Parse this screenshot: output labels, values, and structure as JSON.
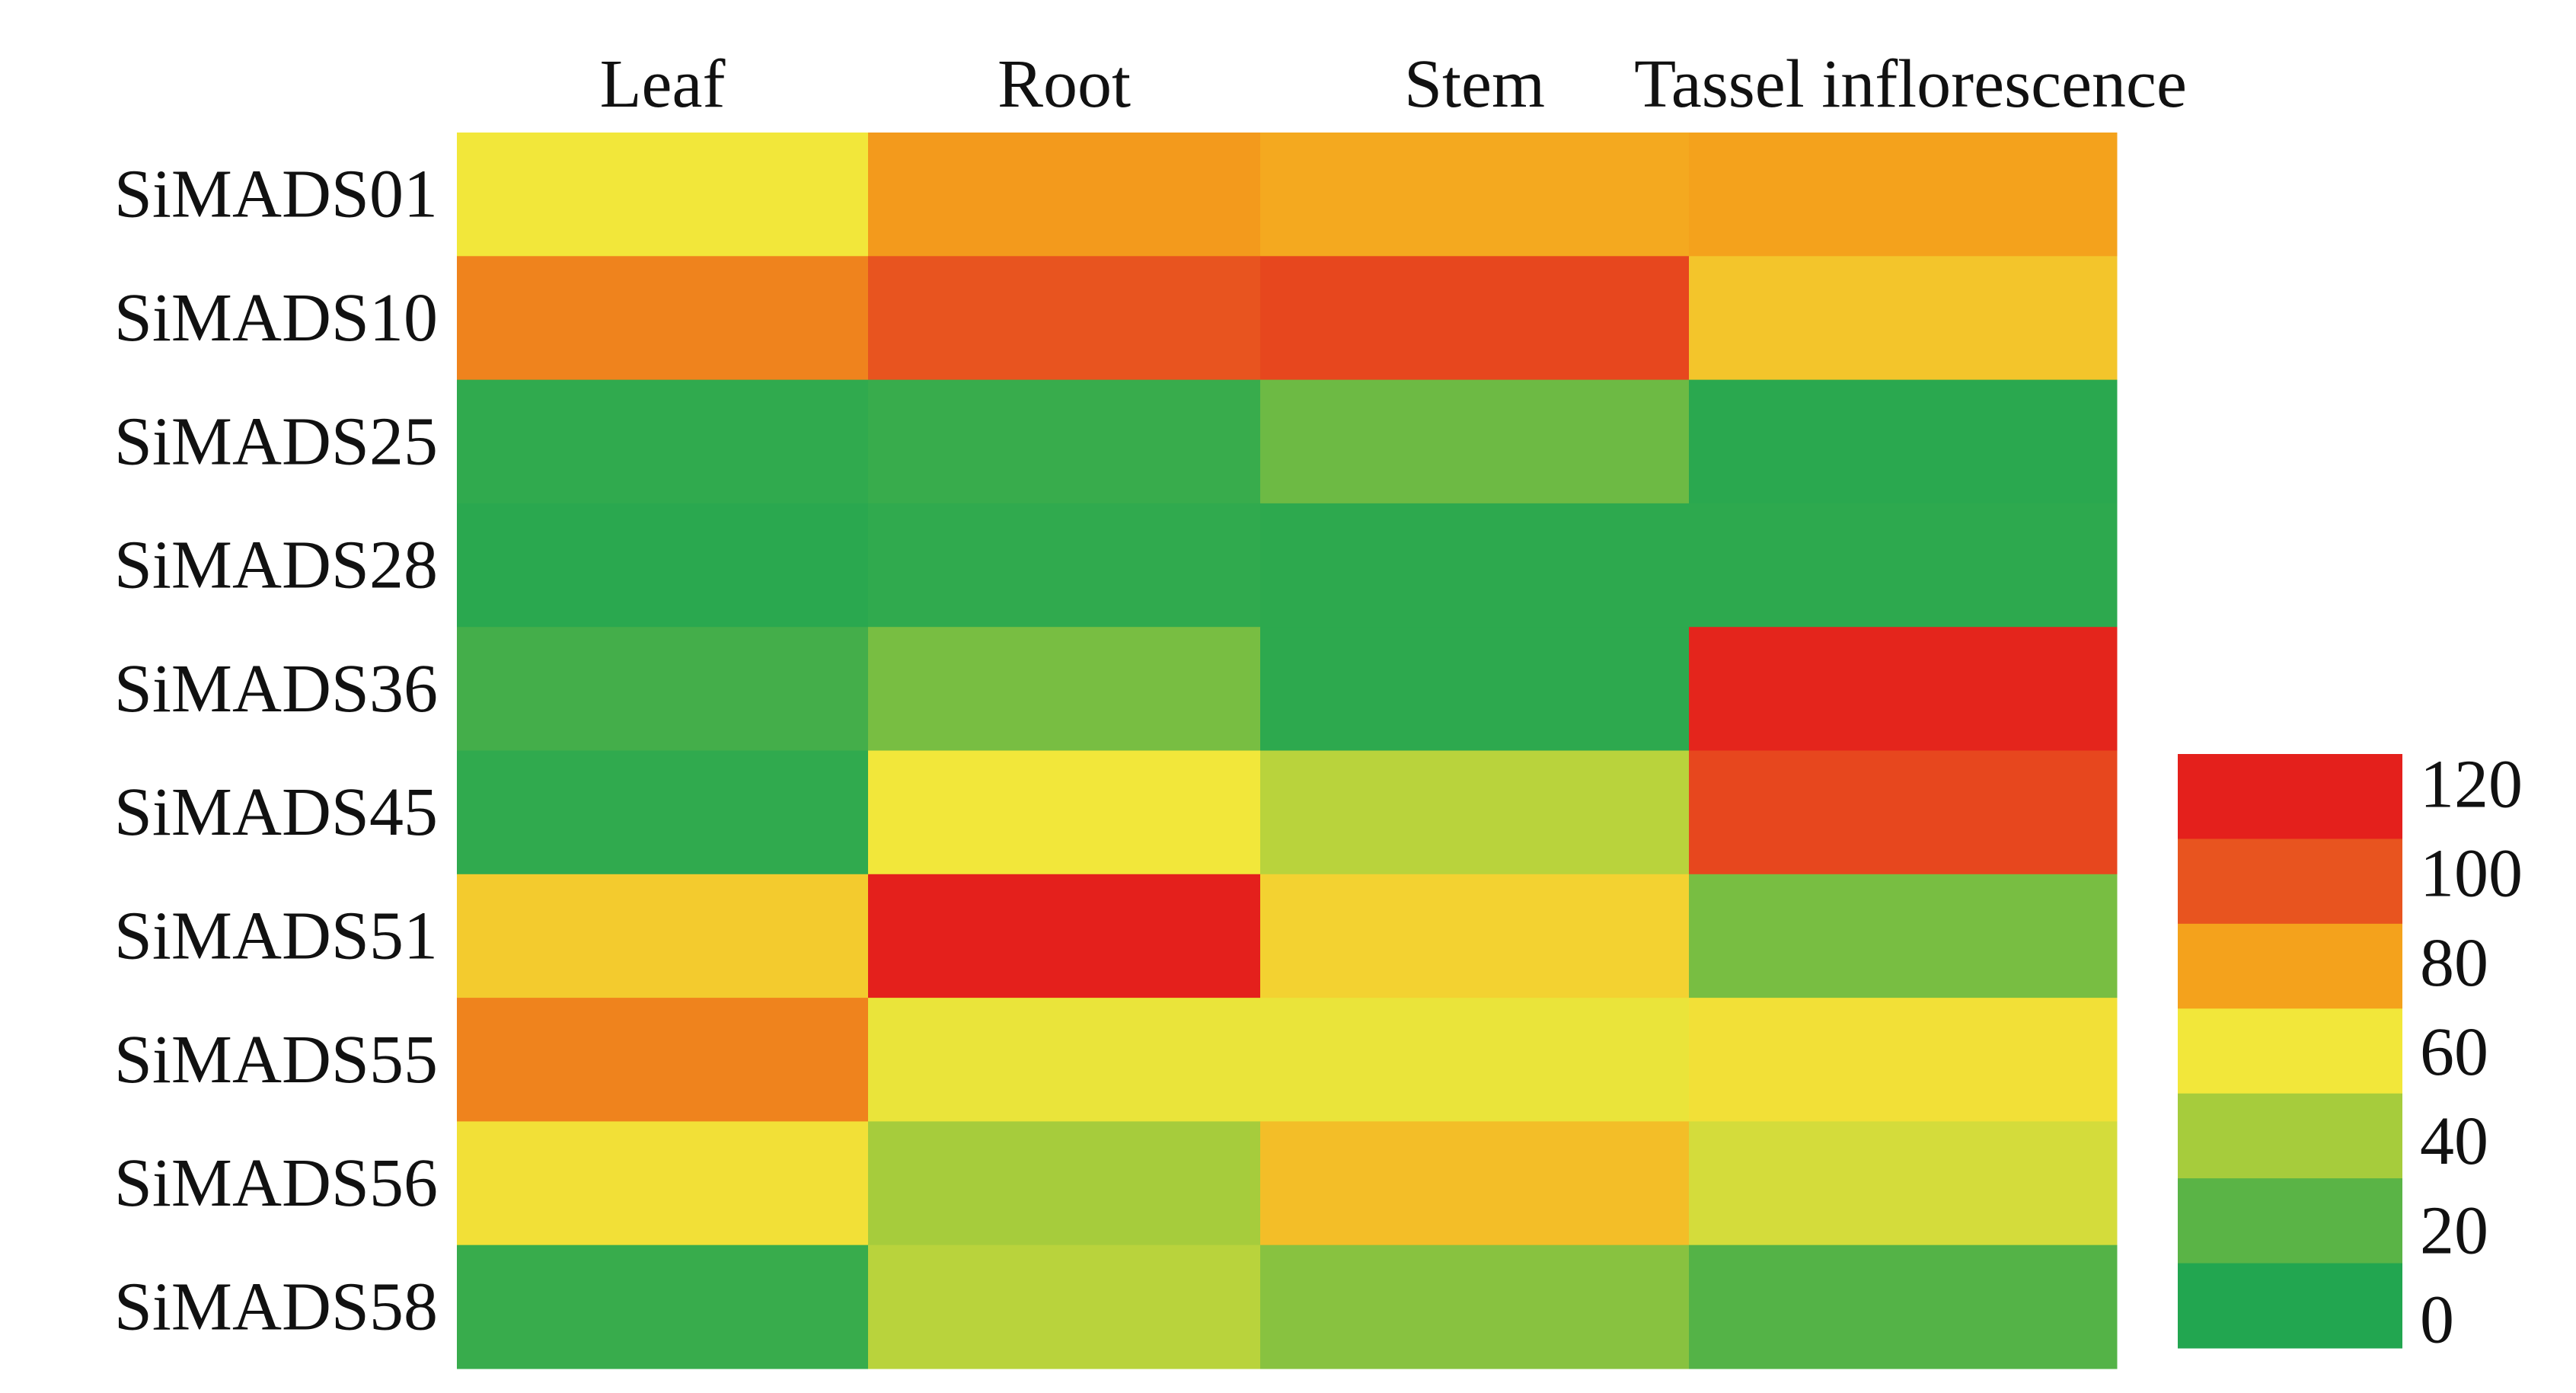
{
  "chart_data": {
    "type": "heatmap",
    "title": "",
    "columns": [
      "Leaf",
      "Root",
      "Stem",
      "Tassel inflorescence"
    ],
    "rows": [
      "SiMADS01",
      "SiMADS10",
      "SiMADS25",
      "SiMADS28",
      "SiMADS36",
      "SiMADS45",
      "SiMADS51",
      "SiMADS55",
      "SiMADS56",
      "SiMADS58"
    ],
    "values": [
      [
        60,
        82,
        78,
        80
      ],
      [
        88,
        100,
        105,
        70
      ],
      [
        5,
        8,
        25,
        3
      ],
      [
        3,
        5,
        4,
        4
      ],
      [
        12,
        28,
        4,
        118
      ],
      [
        5,
        60,
        45,
        105
      ],
      [
        68,
        120,
        66,
        28
      ],
      [
        88,
        58,
        58,
        62
      ],
      [
        62,
        40,
        72,
        52
      ],
      [
        8,
        45,
        32,
        18
      ]
    ],
    "colorbar": {
      "ticks": [
        "120",
        "100",
        "80",
        "60",
        "40",
        "20",
        "0"
      ],
      "bands": [
        {
          "label_value": 120,
          "color": "#e4201c"
        },
        {
          "label_value": 100,
          "color": "#e8541f"
        },
        {
          "label_value": 80,
          "color": "#f4a21c"
        },
        {
          "label_value": 60,
          "color": "#f2e73a"
        },
        {
          "label_value": 40,
          "color": "#a6cc3c"
        },
        {
          "label_value": 20,
          "color": "#5ab446"
        },
        {
          "label_value": 0,
          "color": "#22a650"
        }
      ]
    },
    "vmin": 0,
    "vmax": 120,
    "color_scale": [
      "#22a650",
      "#5ab446",
      "#a6cc3c",
      "#f2e73a",
      "#f4a21c",
      "#e8541f",
      "#e4201c"
    ]
  }
}
